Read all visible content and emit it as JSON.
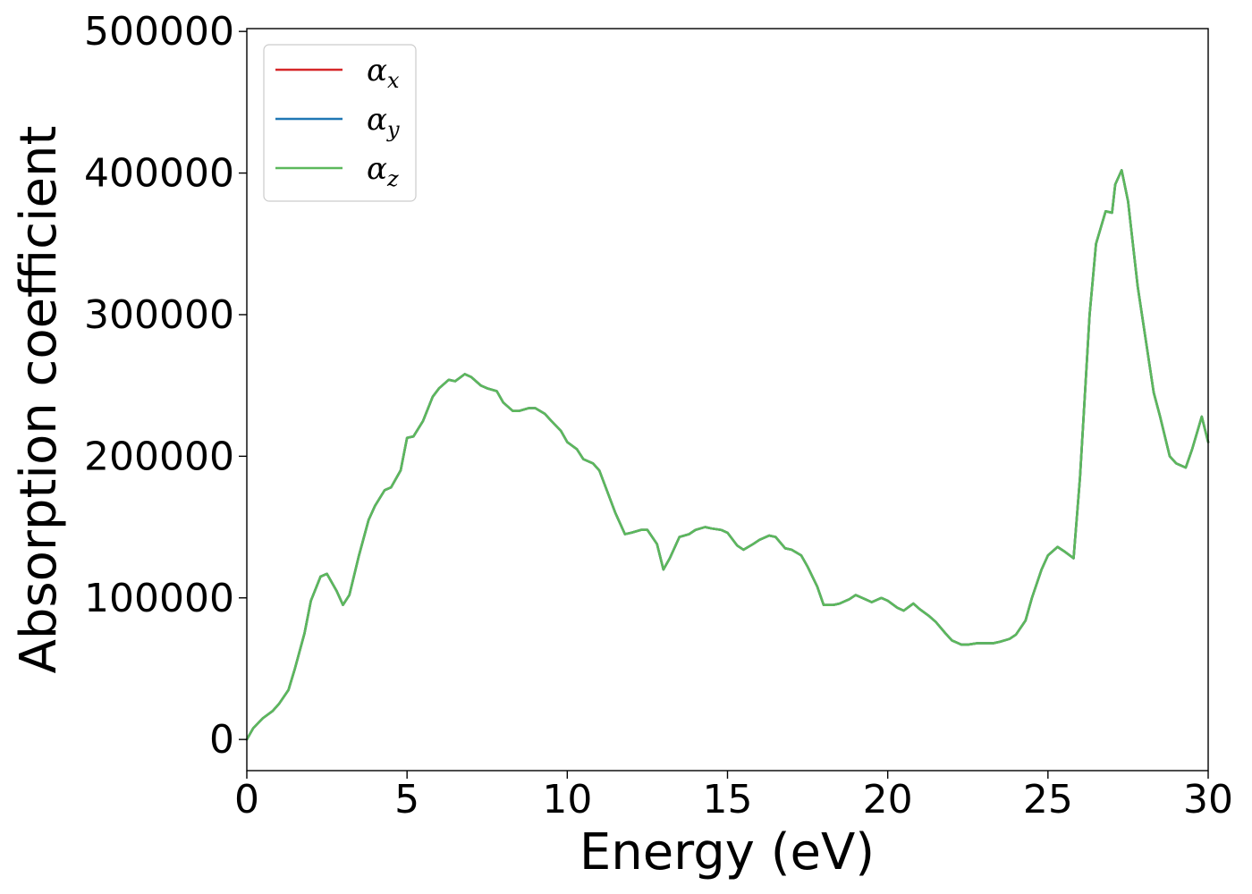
{
  "chart_data": {
    "type": "line",
    "xlabel": "Energy (eV)",
    "ylabel": "Absorption coefficient",
    "xlim": [
      0,
      30
    ],
    "ylim": [
      -22000,
      502000
    ],
    "xticks": [
      "0",
      "5",
      "10",
      "15",
      "20",
      "25",
      "30"
    ],
    "yticks": [
      "0",
      "100000",
      "200000",
      "300000",
      "400000",
      "500000"
    ],
    "grid": false,
    "legend_position": "top-left",
    "x": [
      0,
      0.2,
      0.5,
      0.8,
      1.0,
      1.3,
      1.5,
      1.8,
      2.0,
      2.3,
      2.5,
      2.8,
      3.0,
      3.2,
      3.5,
      3.8,
      4.0,
      4.3,
      4.5,
      4.8,
      5.0,
      5.2,
      5.5,
      5.8,
      6.0,
      6.3,
      6.5,
      6.8,
      7.0,
      7.3,
      7.5,
      7.8,
      8.0,
      8.3,
      8.5,
      8.8,
      9.0,
      9.3,
      9.5,
      9.8,
      10.0,
      10.3,
      10.5,
      10.8,
      11.0,
      11.3,
      11.5,
      11.8,
      12.0,
      12.3,
      12.5,
      12.8,
      13.0,
      13.2,
      13.5,
      13.8,
      14.0,
      14.3,
      14.5,
      14.8,
      15.0,
      15.3,
      15.5,
      15.8,
      16.0,
      16.3,
      16.5,
      16.8,
      17.0,
      17.3,
      17.5,
      17.8,
      18.0,
      18.3,
      18.5,
      18.8,
      19.0,
      19.3,
      19.5,
      19.8,
      20.0,
      20.3,
      20.5,
      20.8,
      21.0,
      21.3,
      21.5,
      21.8,
      22.0,
      22.3,
      22.5,
      22.8,
      23.0,
      23.3,
      23.5,
      23.8,
      24.0,
      24.3,
      24.5,
      24.8,
      25.0,
      25.3,
      25.5,
      25.8,
      26.0,
      26.3,
      26.5,
      26.8,
      27.0,
      27.1,
      27.3,
      27.5,
      27.8,
      28.0,
      28.3,
      28.5,
      28.8,
      29.0,
      29.3,
      29.5,
      29.8,
      30.0
    ],
    "series": [
      {
        "name": "αx",
        "color": "#d62728"
      },
      {
        "name": "αy",
        "color": "#1f77b4"
      },
      {
        "name": "αz",
        "color": "#5cb85c",
        "values": [
          0,
          8000,
          15000,
          20000,
          25000,
          35000,
          50000,
          75000,
          98000,
          115000,
          117000,
          105000,
          95000,
          102000,
          130000,
          155000,
          165000,
          176000,
          178000,
          190000,
          213000,
          214000,
          225000,
          242000,
          248000,
          254000,
          253000,
          258000,
          256000,
          250000,
          248000,
          246000,
          238000,
          232000,
          232000,
          234000,
          234000,
          230000,
          225000,
          218000,
          210000,
          205000,
          198000,
          195000,
          190000,
          172000,
          160000,
          145000,
          146000,
          148000,
          148000,
          138000,
          120000,
          128000,
          143000,
          145000,
          148000,
          150000,
          149000,
          148000,
          146000,
          137000,
          134000,
          138000,
          141000,
          144000,
          143000,
          135000,
          134000,
          130000,
          122000,
          108000,
          95000,
          95000,
          96000,
          99000,
          102000,
          99000,
          97000,
          100000,
          98000,
          93000,
          91000,
          96000,
          92000,
          87000,
          83000,
          75000,
          70000,
          67000,
          67000,
          68000,
          68000,
          68000,
          69000,
          71000,
          74000,
          84000,
          100000,
          120000,
          130000,
          136000,
          133000,
          128000,
          185000,
          300000,
          350000,
          373000,
          372000,
          392000,
          402000,
          380000,
          320000,
          290000,
          245000,
          228000,
          200000,
          195000,
          192000,
          205000,
          228000,
          210000
        ]
      }
    ]
  }
}
